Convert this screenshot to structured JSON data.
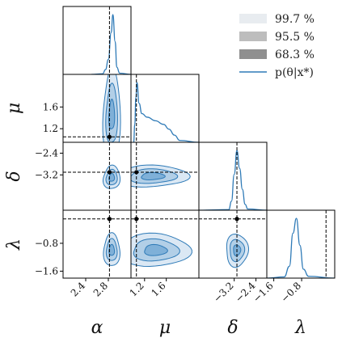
{
  "chart_data": {
    "type": "corner",
    "parameters": [
      "α",
      "μ",
      "δ",
      "λ"
    ],
    "ranges": {
      "alpha": [
        2.0,
        3.2
      ],
      "mu": [
        0.95,
        2.2
      ],
      "delta": [
        -4.5,
        -2.0
      ],
      "lambda": [
        -1.8,
        0.15
      ]
    },
    "true_values": {
      "alpha": 2.82,
      "mu": 1.05,
      "delta": -3.1,
      "lambda": -0.1
    },
    "ticks": {
      "alpha": {
        "values": [
          2.4,
          2.8
        ],
        "labels": [
          "2.4",
          "2.8"
        ]
      },
      "mu": {
        "values": [
          1.2,
          1.6
        ],
        "labels": [
          "1.2",
          "1.6"
        ]
      },
      "delta": {
        "values": [
          -3.2,
          -2.4
        ],
        "labels": [
          "−3.2",
          "−2.4"
        ]
      },
      "lambda": {
        "values": [
          -1.6,
          -0.8
        ],
        "labels": [
          "−1.6",
          "−0.8"
        ]
      }
    },
    "row_ticks": {
      "mu": {
        "values": [
          1.2,
          1.6
        ],
        "labels": [
          "1.2",
          "1.6"
        ]
      },
      "delta": {
        "values": [
          -3.2,
          -2.4
        ],
        "labels": [
          "−3.2",
          "−2.4"
        ]
      },
      "lambda": {
        "values": [
          -1.6,
          -0.8
        ],
        "labels": [
          "−1.6",
          "−0.8"
        ]
      }
    },
    "marginals": {
      "alpha": {
        "x": [
          2.5,
          2.7,
          2.75,
          2.8,
          2.85,
          2.88,
          2.92,
          2.95,
          3.0,
          3.2
        ],
        "density": [
          0,
          0.01,
          0.08,
          0.25,
          0.7,
          1.0,
          0.55,
          0.12,
          0.02,
          0
        ]
      },
      "mu": {
        "x": [
          1.0,
          1.02,
          1.04,
          1.06,
          1.1,
          1.15,
          1.25,
          1.4,
          1.55,
          1.65,
          1.75,
          1.85,
          2.2
        ],
        "density": [
          0.0,
          0.3,
          0.75,
          1.0,
          0.65,
          0.48,
          0.42,
          0.36,
          0.3,
          0.22,
          0.12,
          0.03,
          0
        ]
      },
      "delta": {
        "x": [
          -4.5,
          -3.4,
          -3.3,
          -3.2,
          -3.1,
          -3.0,
          -2.9,
          -2.8,
          -2.7,
          -2.0
        ],
        "density": [
          0,
          0.01,
          0.15,
          0.6,
          1.0,
          0.7,
          0.35,
          0.1,
          0.02,
          0
        ]
      },
      "lambda": {
        "x": [
          -1.8,
          -1.3,
          -1.15,
          -1.05,
          -0.95,
          -0.85,
          -0.75,
          -0.6,
          0.15
        ],
        "density": [
          0,
          0.02,
          0.2,
          0.75,
          1.0,
          0.55,
          0.15,
          0.03,
          0
        ]
      }
    },
    "contours": {
      "mu_vs_alpha": {
        "mean": [
          2.86,
          1.45
        ],
        "sd": [
          0.05,
          0.28
        ]
      },
      "delta_vs_alpha": {
        "mean": [
          2.86,
          -3.3
        ],
        "sd": [
          0.05,
          0.14
        ]
      },
      "delta_vs_mu": {
        "mean": [
          1.35,
          -3.25
        ],
        "sd": [
          0.22,
          0.13
        ]
      },
      "lambda_vs_alpha": {
        "mean": [
          2.86,
          -1.0
        ],
        "sd": [
          0.05,
          0.15
        ]
      },
      "lambda_vs_mu": {
        "mean": [
          1.4,
          -1.0
        ],
        "sd": [
          0.22,
          0.15
        ]
      },
      "lambda_vs_delta": {
        "mean": [
          -3.1,
          -1.0
        ],
        "sd": [
          0.14,
          0.15
        ]
      }
    },
    "legend": {
      "placement": "top-right",
      "entries": [
        {
          "label": "99.7 %",
          "color": "#e8ecf0"
        },
        {
          "label": "95.5 %",
          "color": "#bdbdbd"
        },
        {
          "label": "68.3 %",
          "color": "#8f8f8f"
        },
        {
          "label": "p(θ|x*)",
          "color": "#2e7ab7"
        }
      ]
    },
    "colors": {
      "line": "#2e7ab7",
      "fill_997": "#dbe8f4",
      "fill_955": "#b2cfe7",
      "fill_683": "#7fb0d8"
    }
  }
}
